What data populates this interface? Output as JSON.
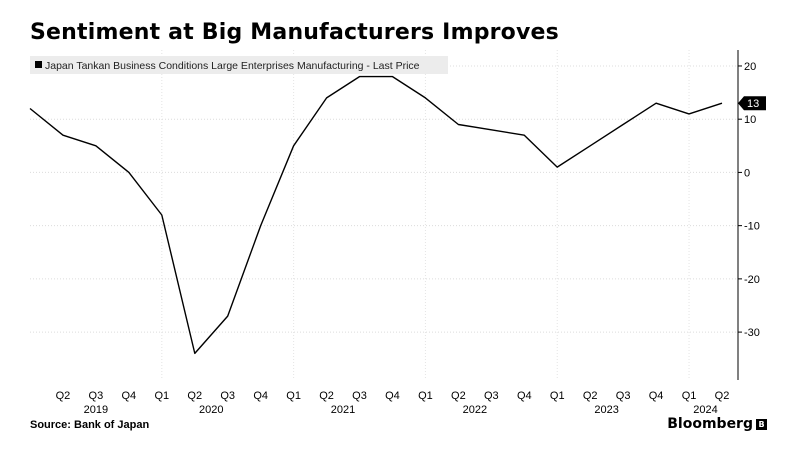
{
  "chart_data": {
    "type": "line",
    "title": "Sentiment at Big Manufacturers Improves",
    "legend": "Japan Tankan Business Conditions Large Enterprises Manufacturing - Last Price",
    "legend_position": "top-left",
    "x": [
      "2019-Q1",
      "2019-Q2",
      "2019-Q3",
      "2019-Q4",
      "2020-Q1",
      "2020-Q2",
      "2020-Q3",
      "2020-Q4",
      "2021-Q1",
      "2021-Q2",
      "2021-Q3",
      "2021-Q4",
      "2022-Q1",
      "2022-Q2",
      "2022-Q3",
      "2022-Q4",
      "2023-Q1",
      "2023-Q2",
      "2023-Q3",
      "2023-Q4",
      "2024-Q1",
      "2024-Q2"
    ],
    "series": [
      {
        "name": "Japan Tankan Business Conditions Large Enterprises Manufacturing - Last Price",
        "values": [
          12,
          7,
          5,
          0,
          -8,
          -34,
          -27,
          -10,
          5,
          14,
          18,
          18,
          14,
          9,
          8,
          7,
          1,
          5,
          9,
          13,
          11,
          13
        ]
      }
    ],
    "last_value_label": "13",
    "ylim": [
      -39,
      23
    ],
    "yticks": [
      "20",
      "10",
      "0",
      "-10",
      "-20",
      "-30"
    ],
    "quarter_labels": [
      "Q2",
      "Q3",
      "Q4",
      "Q1",
      "Q2",
      "Q3",
      "Q4",
      "Q1",
      "Q2",
      "Q3",
      "Q4",
      "Q1",
      "Q2",
      "Q3",
      "Q4",
      "Q1",
      "Q2",
      "Q3",
      "Q4",
      "Q1",
      "Q2"
    ],
    "year_labels": [
      "2019",
      "2020",
      "2021",
      "2022",
      "2023",
      "2024"
    ],
    "grid": true
  },
  "footer": {
    "source": "Source:  Bank of Japan",
    "brand": "Bloomberg",
    "brand_mark": "B"
  },
  "colors": {
    "line": "#000000",
    "grid": "#dcdcdc",
    "axis": "#000000"
  }
}
